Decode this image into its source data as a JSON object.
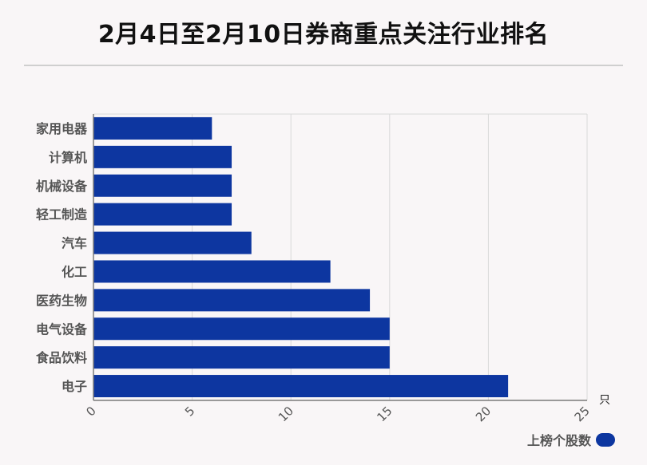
{
  "title": "2月4日至2月10日券商重点关注行业排名",
  "chart_data": {
    "type": "bar",
    "orientation": "horizontal",
    "categories": [
      "家用电器",
      "计算机",
      "机械设备",
      "轻工制造",
      "汽车",
      "化工",
      "医药生物",
      "电气设备",
      "食品饮料",
      "电子"
    ],
    "series": [
      {
        "name": "上榜个股数",
        "values": [
          6,
          7,
          7,
          7,
          8,
          12,
          14,
          15,
          15,
          21
        ]
      }
    ],
    "xlim": [
      0,
      25
    ],
    "xticks": [
      0,
      5,
      10,
      15,
      20,
      25
    ],
    "xunit": "只",
    "grid": true,
    "legend_position": "bottom-right"
  },
  "colors": {
    "bar": "#0d36a0",
    "grid": "#d9d9d9",
    "axis": "#7a7a7a",
    "label": "#555555"
  }
}
